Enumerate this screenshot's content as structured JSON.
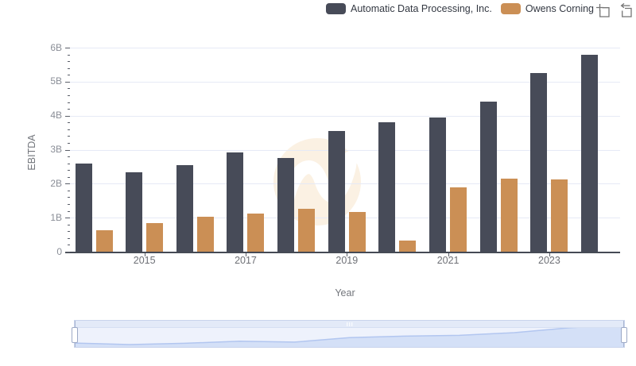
{
  "legend": {
    "items": [
      {
        "label": "Automatic Data Processing, Inc.",
        "color": "#474b58"
      },
      {
        "label": "Owens Corning",
        "color": "#cb8f55"
      }
    ]
  },
  "toolbox": {
    "icons": [
      {
        "name": "zoom-select-icon"
      },
      {
        "name": "restore-icon"
      }
    ],
    "color": "#757575"
  },
  "axes": {
    "y_title": "EBITDA",
    "x_title": "Year",
    "y_ticks": [
      "0",
      "1B",
      "2B",
      "3B",
      "4B",
      "5B",
      "6B"
    ],
    "x_tick_labels": [
      "2015",
      "2017",
      "2019",
      "2021",
      "2023"
    ]
  },
  "chart_data": {
    "type": "bar",
    "title": "",
    "xlabel": "Year",
    "ylabel": "EBITDA",
    "ylim": [
      0,
      6
    ],
    "unit": "B",
    "grid": true,
    "legend_position": "top",
    "categories": [
      2014,
      2015,
      2016,
      2017,
      2018,
      2019,
      2020,
      2021,
      2022,
      2023,
      2024
    ],
    "series": [
      {
        "name": "Automatic Data Processing, Inc.",
        "color": "#474b58",
        "values": [
          2.6,
          2.33,
          2.55,
          2.91,
          2.76,
          3.55,
          3.8,
          3.94,
          4.41,
          5.26,
          5.8
        ]
      },
      {
        "name": "Owens Corning",
        "color": "#cb8f55",
        "values": [
          0.62,
          0.85,
          1.02,
          1.12,
          1.25,
          1.16,
          0.33,
          1.9,
          2.15,
          2.12,
          null
        ]
      }
    ],
    "navigator": {
      "shown_series": "Automatic Data Processing, Inc.",
      "line_color": "#b2c6f0",
      "fill_color": "#d4e0f7"
    }
  },
  "colors": {
    "gridline": "#e6eaf6",
    "axis_line": "#454a55",
    "watermark_circle": "#fbf1e3",
    "watermark_mark": "#ffffff",
    "navigator_track": "#eef2fc",
    "navigator_strip": "#e3eaf8"
  }
}
